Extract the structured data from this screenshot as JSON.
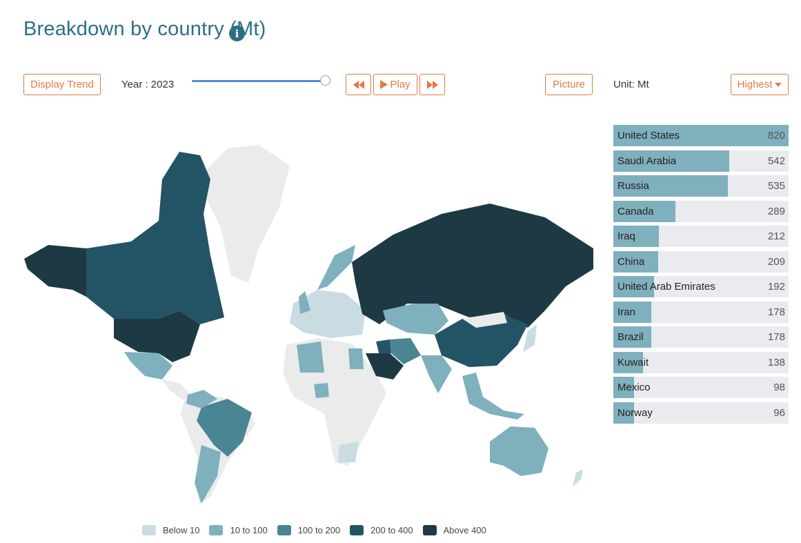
{
  "header": {
    "title": "Breakdown by country (Mt)",
    "info_icon": "info-icon"
  },
  "controls": {
    "display_trend": "Display Trend",
    "year_label": "Year : 2023",
    "year_slider_position": 1.0,
    "rewind_icon": "rewind-icon",
    "play_label": "Play",
    "play_icon": "play-icon",
    "forward_icon": "fast-forward-icon",
    "picture": "Picture",
    "unit": "Unit: Mt",
    "sort": "Highest",
    "sort_icon": "caret-down-icon"
  },
  "colors": {
    "accent": "#e07a45",
    "title": "#2b6f86",
    "bar": "#7fb0be",
    "bar_bg": "#e9ebef",
    "below_10": "#c9dce1",
    "10_100": "#7fb0be",
    "100_200": "#4a8594",
    "200_400": "#235466",
    "above_400": "#1d3a44",
    "no_data": "#ebebeb"
  },
  "ranking": [
    {
      "country": "United States",
      "value": 820
    },
    {
      "country": "Saudi Arabia",
      "value": 542
    },
    {
      "country": "Russia",
      "value": 535
    },
    {
      "country": "Canada",
      "value": 289
    },
    {
      "country": "Iraq",
      "value": 212
    },
    {
      "country": "China",
      "value": 209
    },
    {
      "country": "United Arab Emirates",
      "value": 192
    },
    {
      "country": "Iran",
      "value": 178
    },
    {
      "country": "Brazil",
      "value": 178
    },
    {
      "country": "Kuwait",
      "value": 138
    },
    {
      "country": "Mexico",
      "value": 98
    },
    {
      "country": "Norway",
      "value": 96
    }
  ],
  "legend": [
    {
      "label": "Below 10",
      "color": "#c9dce1"
    },
    {
      "label": "10 to 100",
      "color": "#7fb0be"
    },
    {
      "label": "100 to 200",
      "color": "#4a8594"
    },
    {
      "label": "200 to 400",
      "color": "#235466"
    },
    {
      "label": "Above 400",
      "color": "#1d3a44"
    }
  ]
}
